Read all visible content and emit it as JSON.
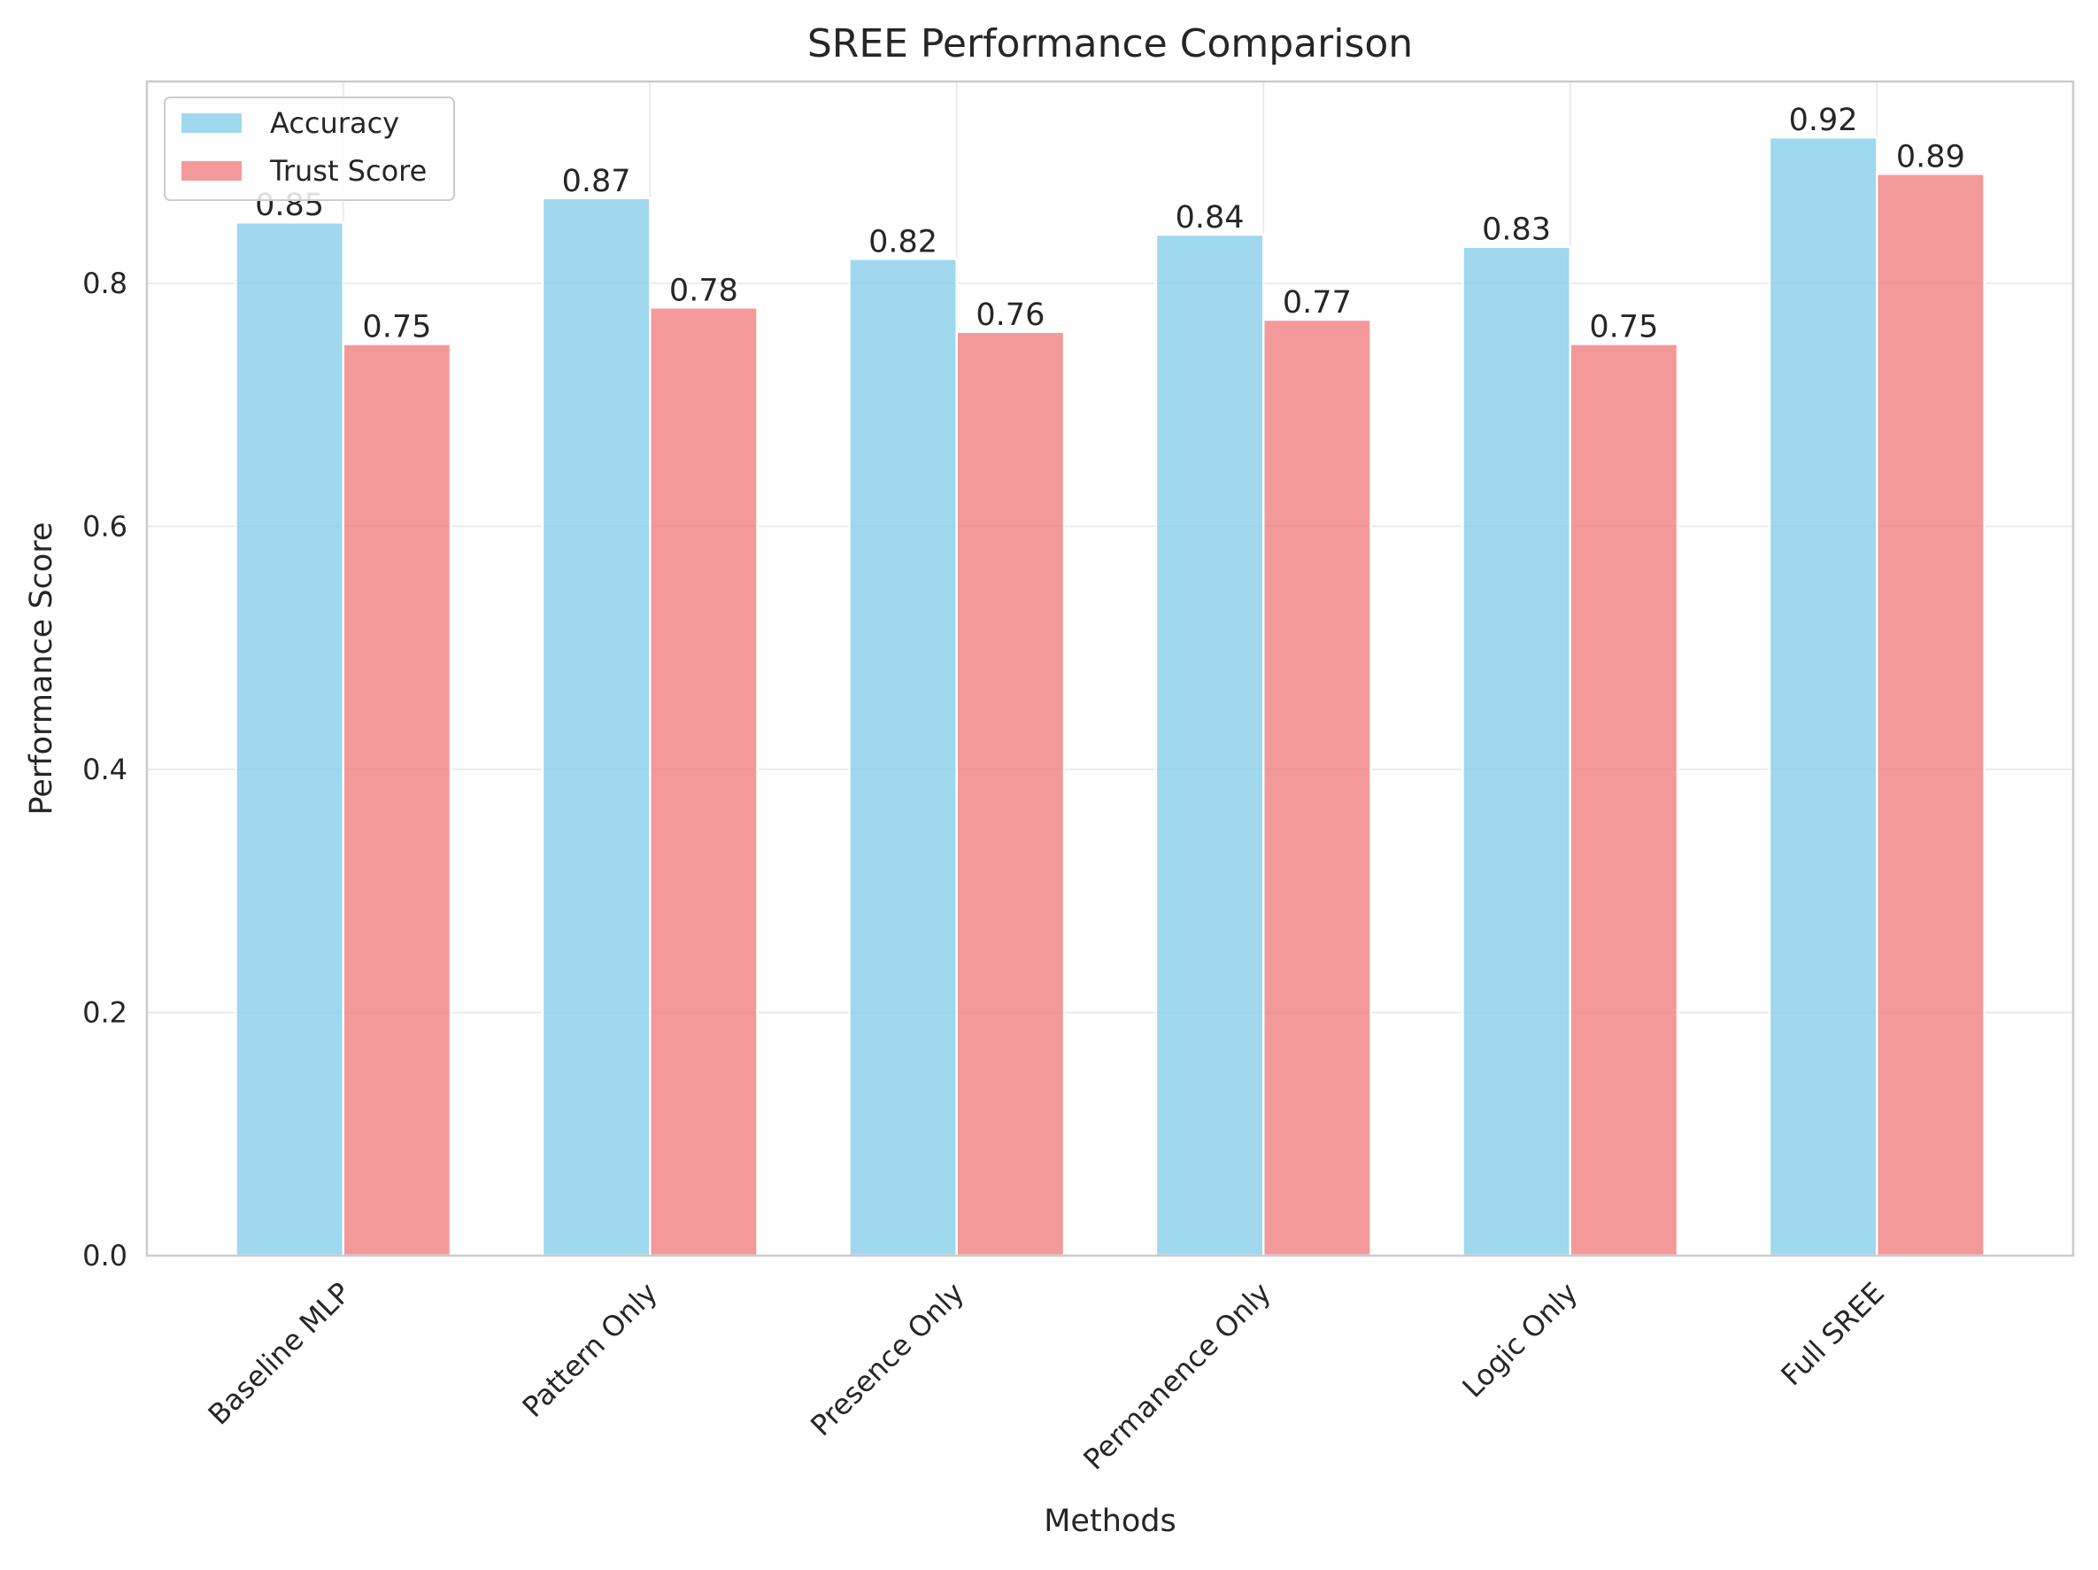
{
  "chart_data": {
    "type": "bar",
    "title": "SREE Performance Comparison",
    "xlabel": "Methods",
    "ylabel": "Performance Score",
    "categories": [
      "Baseline MLP",
      "Pattern Only",
      "Presence Only",
      "Permanence Only",
      "Logic Only",
      "Full SREE"
    ],
    "series": [
      {
        "name": "Accuracy",
        "values": [
          0.85,
          0.87,
          0.82,
          0.84,
          0.83,
          0.92
        ],
        "color": "#87ceeb"
      },
      {
        "name": "Trust Score",
        "values": [
          0.75,
          0.78,
          0.76,
          0.77,
          0.75,
          0.89
        ],
        "color": "#f08080"
      }
    ],
    "data_labels": [
      [
        "0.85",
        "0.87",
        "0.82",
        "0.84",
        "0.83",
        "0.92"
      ],
      [
        "0.75",
        "0.78",
        "0.76",
        "0.77",
        "0.75",
        "0.89"
      ]
    ],
    "ylim": [
      0,
      0.966
    ],
    "yticks": [
      0.0,
      0.2,
      0.4,
      0.6,
      0.8
    ],
    "ytick_labels": [
      "0.0",
      "0.2",
      "0.4",
      "0.6",
      "0.8"
    ],
    "grid": true,
    "legend_position": "top-left"
  }
}
